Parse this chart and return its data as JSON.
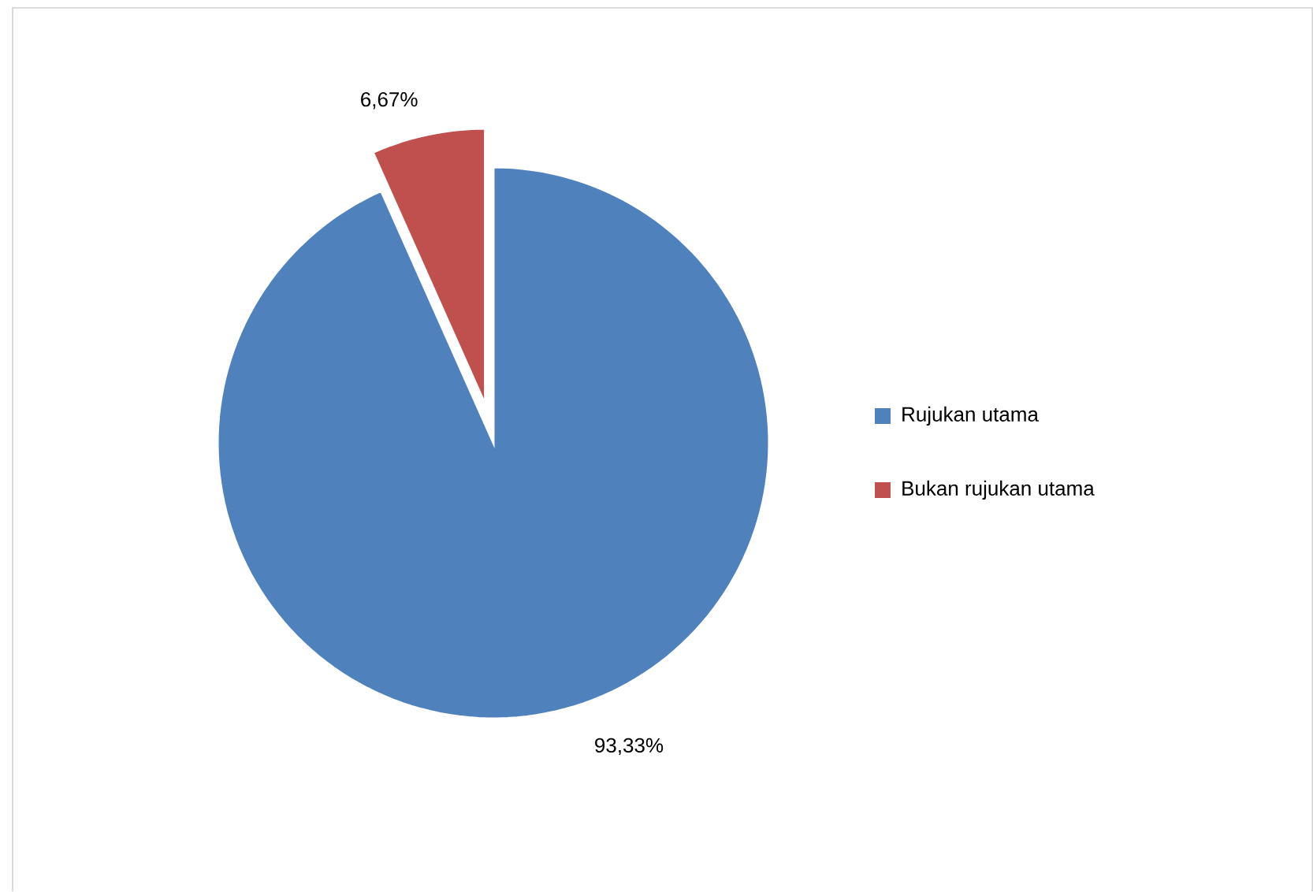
{
  "chart_data": {
    "type": "pie",
    "categories": [
      "Rujukan utama",
      "Bukan rujukan utama"
    ],
    "values": [
      93.33,
      6.67
    ],
    "colors": [
      "#4f81bd",
      "#c0504d"
    ],
    "value_labels": [
      "93,33%",
      "6,67%"
    ],
    "legend": "right"
  }
}
